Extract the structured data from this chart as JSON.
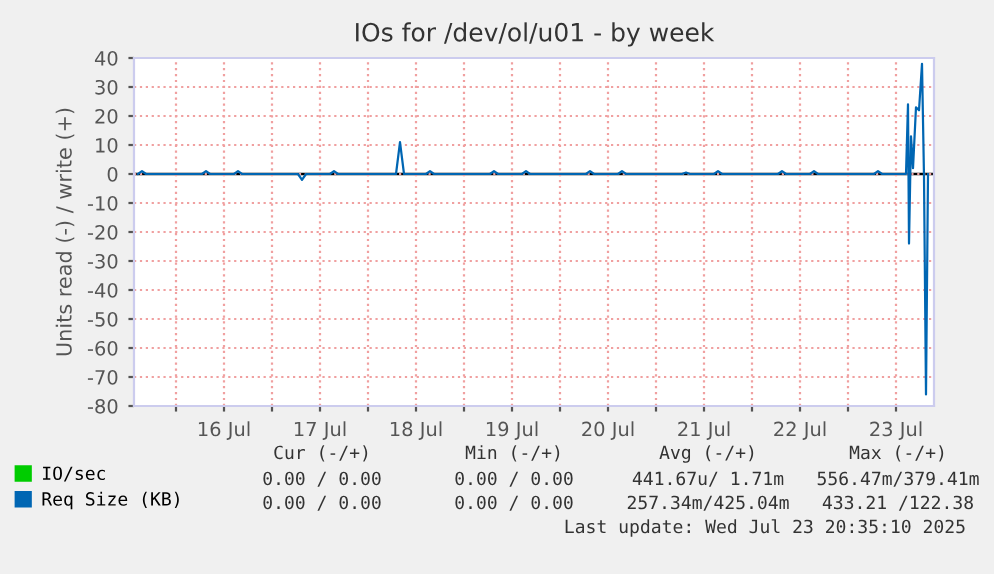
{
  "chart_data": {
    "type": "line",
    "title": "IOs for /dev/ol/u01 - by week",
    "ylabel": "Units read (-) / write (+)",
    "xlim": [
      "2025-07-15T13:30",
      "2025-07-23T21:30"
    ],
    "ylim": [
      -80,
      40
    ],
    "xticks": [
      {
        "value": "2025-07-16T00:00",
        "label": null
      },
      {
        "value": "2025-07-16T12:00",
        "label": "16 Jul"
      },
      {
        "value": "2025-07-17T00:00",
        "label": null
      },
      {
        "value": "2025-07-17T12:00",
        "label": "17 Jul"
      },
      {
        "value": "2025-07-18T00:00",
        "label": null
      },
      {
        "value": "2025-07-18T12:00",
        "label": "18 Jul"
      },
      {
        "value": "2025-07-19T00:00",
        "label": null
      },
      {
        "value": "2025-07-19T12:00",
        "label": "19 Jul"
      },
      {
        "value": "2025-07-20T00:00",
        "label": null
      },
      {
        "value": "2025-07-20T12:00",
        "label": "20 Jul"
      },
      {
        "value": "2025-07-21T00:00",
        "label": null
      },
      {
        "value": "2025-07-21T12:00",
        "label": "21 Jul"
      },
      {
        "value": "2025-07-22T00:00",
        "label": null
      },
      {
        "value": "2025-07-22T12:00",
        "label": "22 Jul"
      },
      {
        "value": "2025-07-23T00:00",
        "label": null
      },
      {
        "value": "2025-07-23T12:00",
        "label": "23 Jul"
      }
    ],
    "yticks": [
      -80,
      -70,
      -60,
      -50,
      -40,
      -30,
      -20,
      -10,
      0,
      10,
      20,
      30,
      40
    ],
    "grid": true,
    "legend": "bottom left",
    "ref_lines": [
      {
        "axis": "y",
        "value": 0,
        "color": "#000000"
      }
    ],
    "series": [
      {
        "name": "IO/sec",
        "color": "#00cc00"
      },
      {
        "name": "Req Size (KB)",
        "color": "#0066b3",
        "x": [
          "2025-07-15T14:30",
          "2025-07-15T15:30",
          "2025-07-15T16:30",
          "2025-07-16T06:30",
          "2025-07-16T07:30",
          "2025-07-16T08:30",
          "2025-07-16T14:30",
          "2025-07-16T15:30",
          "2025-07-16T16:30",
          "2025-07-17T06:30",
          "2025-07-17T07:30",
          "2025-07-17T08:30",
          "2025-07-17T14:30",
          "2025-07-17T15:30",
          "2025-07-17T16:30",
          "2025-07-18T07:00",
          "2025-07-18T08:00",
          "2025-07-18T09:00",
          "2025-07-18T14:30",
          "2025-07-18T15:30",
          "2025-07-18T16:30",
          "2025-07-19T06:30",
          "2025-07-19T07:30",
          "2025-07-19T08:30",
          "2025-07-19T14:30",
          "2025-07-19T15:30",
          "2025-07-19T16:30",
          "2025-07-20T06:30",
          "2025-07-20T07:30",
          "2025-07-20T08:30",
          "2025-07-20T14:30",
          "2025-07-20T15:30",
          "2025-07-20T16:30",
          "2025-07-21T06:30",
          "2025-07-21T07:30",
          "2025-07-21T08:30",
          "2025-07-21T14:30",
          "2025-07-21T15:30",
          "2025-07-21T16:30",
          "2025-07-22T06:30",
          "2025-07-22T07:30",
          "2025-07-22T08:30",
          "2025-07-22T14:30",
          "2025-07-22T15:30",
          "2025-07-22T16:30",
          "2025-07-23T06:30",
          "2025-07-23T07:30",
          "2025-07-23T08:30",
          "2025-07-23T14:30",
          "2025-07-23T15:00",
          "2025-07-23T15:15",
          "2025-07-23T15:45",
          "2025-07-23T16:15",
          "2025-07-23T17:00",
          "2025-07-23T17:45",
          "2025-07-23T18:30",
          "2025-07-23T19:00",
          "2025-07-23T19:30",
          "2025-07-23T20:00"
        ],
        "values": [
          0,
          1,
          0,
          0,
          1,
          0,
          0,
          1,
          0,
          0,
          -2,
          0,
          0,
          1,
          0,
          0,
          11,
          0,
          0,
          1,
          0,
          0,
          1,
          0,
          0,
          1,
          0,
          0,
          1,
          0,
          0,
          1,
          0,
          0,
          0.5,
          0,
          0,
          1,
          0,
          0,
          1,
          0,
          0,
          1,
          0,
          0,
          1,
          0,
          0,
          24,
          -24,
          13,
          2,
          23,
          22,
          38,
          -1,
          -76,
          0
        ]
      }
    ],
    "annotations": [
      "Cur (-/+)",
      "Min (-/+)",
      "Avg (-/+)",
      "Max (-/+)",
      "0.00 / 0.00",
      "0.00 / 0.00",
      "441.67u/ 1.71m",
      "556.47m/379.41m",
      "0.00 / 0.00",
      "0.00 / 0.00",
      "257.34m/425.04m",
      "433.21 /122.38",
      "Last update: Wed Jul 23 20:35:10 2025"
    ]
  }
}
